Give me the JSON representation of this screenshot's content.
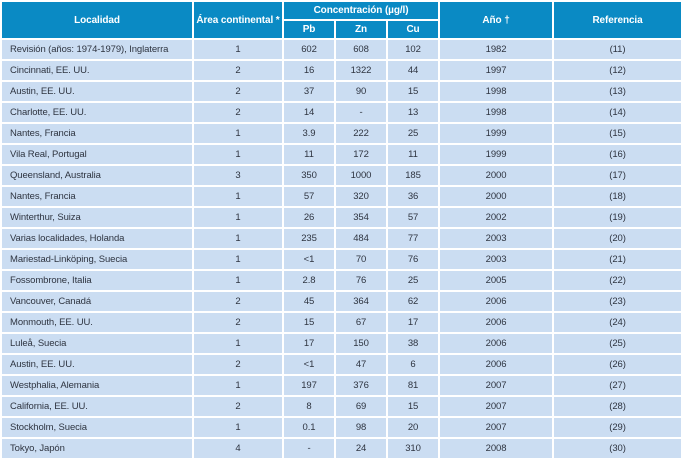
{
  "table": {
    "headers": {
      "localidad": "Localidad",
      "area_continental": "Área continental *",
      "concentracion": "Concentración (µg/l)",
      "pb": "Pb",
      "zn": "Zn",
      "cu": "Cu",
      "ano": "Año †",
      "referencia": "Referencia"
    },
    "rows": [
      {
        "localidad": "Revisión (años: 1974-1979), Inglaterra",
        "area": "1",
        "pb": "602",
        "zn": "608",
        "cu": "102",
        "ano": "1982",
        "referencia": "(11)"
      },
      {
        "localidad": "Cincinnati, EE. UU.",
        "area": "2",
        "pb": "16",
        "zn": "1322",
        "cu": "44",
        "ano": "1997",
        "referencia": "(12)"
      },
      {
        "localidad": "Austin, EE. UU.",
        "area": "2",
        "pb": "37",
        "zn": "90",
        "cu": "15",
        "ano": "1998",
        "referencia": "(13)"
      },
      {
        "localidad": "Charlotte, EE. UU.",
        "area": "2",
        "pb": "14",
        "zn": "-",
        "cu": "13",
        "ano": "1998",
        "referencia": "(14)"
      },
      {
        "localidad": "Nantes, Francia",
        "area": "1",
        "pb": "3.9",
        "zn": "222",
        "cu": "25",
        "ano": "1999",
        "referencia": "(15)"
      },
      {
        "localidad": "Vila Real, Portugal",
        "area": "1",
        "pb": "11",
        "zn": "172",
        "cu": "11",
        "ano": "1999",
        "referencia": "(16)"
      },
      {
        "localidad": "Queensland, Australia",
        "area": "3",
        "pb": "350",
        "zn": "1000",
        "cu": "185",
        "ano": "2000",
        "referencia": "(17)"
      },
      {
        "localidad": "Nantes, Francia",
        "area": "1",
        "pb": "57",
        "zn": "320",
        "cu": "36",
        "ano": "2000",
        "referencia": "(18)"
      },
      {
        "localidad": "Winterthur, Suiza",
        "area": "1",
        "pb": "26",
        "zn": "354",
        "cu": "57",
        "ano": "2002",
        "referencia": "(19)"
      },
      {
        "localidad": "Varias localidades, Holanda",
        "area": "1",
        "pb": "235",
        "zn": "484",
        "cu": "77",
        "ano": "2003",
        "referencia": "(20)"
      },
      {
        "localidad": "Mariestad-Linköping, Suecia",
        "area": "1",
        "pb": "<1",
        "zn": "70",
        "cu": "76",
        "ano": "2003",
        "referencia": "(21)"
      },
      {
        "localidad": "Fossombrone, Italia",
        "area": "1",
        "pb": "2.8",
        "zn": "76",
        "cu": "25",
        "ano": "2005",
        "referencia": "(22)"
      },
      {
        "localidad": "Vancouver, Canadá",
        "area": "2",
        "pb": "45",
        "zn": "364",
        "cu": "62",
        "ano": "2006",
        "referencia": "(23)"
      },
      {
        "localidad": "Monmouth, EE. UU.",
        "area": "2",
        "pb": "15",
        "zn": "67",
        "cu": "17",
        "ano": "2006",
        "referencia": "(24)"
      },
      {
        "localidad": "Luleå, Suecia",
        "area": "1",
        "pb": "17",
        "zn": "150",
        "cu": "38",
        "ano": "2006",
        "referencia": "(25)"
      },
      {
        "localidad": "Austin, EE. UU.",
        "area": "2",
        "pb": "<1",
        "zn": "47",
        "cu": "6",
        "ano": "2006",
        "referencia": "(26)"
      },
      {
        "localidad": "Westphalia, Alemania",
        "area": "1",
        "pb": "197",
        "zn": "376",
        "cu": "81",
        "ano": "2007",
        "referencia": "(27)"
      },
      {
        "localidad": "California, EE. UU.",
        "area": "2",
        "pb": "8",
        "zn": "69",
        "cu": "15",
        "ano": "2007",
        "referencia": "(28)"
      },
      {
        "localidad": "Stockholm, Suecia",
        "area": "1",
        "pb": "0.1",
        "zn": "98",
        "cu": "20",
        "ano": "2007",
        "referencia": "(29)"
      },
      {
        "localidad": "Tokyo, Japón",
        "area": "4",
        "pb": "-",
        "zn": "24",
        "cu": "310",
        "ano": "2008",
        "referencia": "(30)"
      }
    ]
  },
  "colors": {
    "header_bg": "#0a8ac4",
    "header_text": "#ffffff",
    "row_bg": "#cbddf2",
    "row_text": "#2e3440",
    "separator": "#ffffff"
  }
}
